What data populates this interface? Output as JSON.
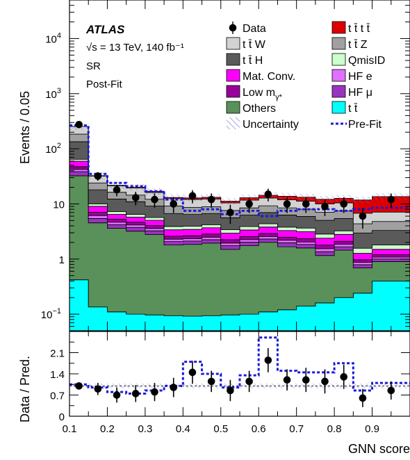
{
  "chart_data": [
    {
      "type": "stacked-histogram",
      "yscale": "log",
      "ylabel": "Events / 0.05",
      "xlabel": "GNN score",
      "xlim": [
        0.1,
        1.0
      ],
      "ylim": [
        0.05,
        50000
      ],
      "annotation": {
        "atlas": "ATLAS",
        "energy": "√s = 13 TeV, 140 fb⁻¹",
        "region": "SR",
        "fit": "Post-Fit"
      },
      "bins": [
        0.1,
        0.15,
        0.2,
        0.25,
        0.3,
        0.35,
        0.4,
        0.45,
        0.5,
        0.55,
        0.6,
        0.65,
        0.7,
        0.75,
        0.8,
        0.85,
        0.9,
        1.0
      ],
      "series": [
        {
          "name": "t t̄",
          "color": "#00ffff",
          "values": [
            0.42,
            0.135,
            0.11,
            0.1,
            0.097,
            0.094,
            0.092,
            0.094,
            0.097,
            0.1,
            0.11,
            0.12,
            0.14,
            0.16,
            0.2,
            0.24,
            0.4
          ]
        },
        {
          "name": "Others",
          "color": "#5a915a",
          "values": [
            32,
            4.4,
            3.5,
            3.1,
            2.7,
            1.7,
            1.75,
            1.85,
            1.4,
            1.65,
            1.9,
            1.55,
            1.45,
            1.0,
            1.25,
            0.45,
            0.5
          ]
        },
        {
          "name": "HF μ",
          "color": "#9a33c0",
          "values": [
            6,
            0.9,
            0.6,
            0.55,
            0.45,
            0.28,
            0.28,
            0.3,
            0.25,
            0.28,
            0.3,
            0.3,
            0.25,
            0.2,
            0.22,
            0.1,
            0.1
          ]
        },
        {
          "name": "HF e",
          "color": "#e070ff",
          "values": [
            4,
            0.7,
            0.45,
            0.4,
            0.35,
            0.22,
            0.22,
            0.25,
            0.2,
            0.22,
            0.25,
            0.22,
            0.2,
            0.18,
            0.18,
            0.08,
            0.08
          ]
        },
        {
          "name": "Low m_γ*",
          "color": "#990099",
          "values": [
            5,
            0.9,
            0.6,
            0.5,
            0.45,
            0.3,
            0.3,
            0.35,
            0.3,
            0.32,
            0.35,
            0.3,
            0.3,
            0.25,
            0.25,
            0.1,
            0.12
          ]
        },
        {
          "name": "Mat. Conv.",
          "color": "#ff00ff",
          "values": [
            12,
            2.0,
            1.2,
            1.1,
            1.0,
            0.8,
            0.8,
            0.85,
            0.7,
            0.8,
            0.9,
            0.8,
            0.8,
            0.6,
            0.7,
            0.3,
            0.3
          ]
        },
        {
          "name": "QmisID",
          "color": "#ccffcc",
          "values": [
            5,
            1.0,
            0.8,
            0.7,
            0.6,
            0.5,
            0.5,
            0.5,
            0.45,
            0.5,
            0.55,
            0.5,
            0.5,
            0.45,
            0.45,
            0.3,
            0.3
          ]
        },
        {
          "name": "t t̄ H",
          "color": "#5a5a5a",
          "values": [
            70,
            8,
            5,
            4.5,
            3.5,
            2.8,
            2.5,
            2.5,
            2.2,
            2.4,
            2.6,
            2.5,
            2.3,
            2.2,
            2.2,
            1.4,
            1.5
          ]
        },
        {
          "name": "t t̄ Z",
          "color": "#a0a0a0",
          "values": [
            50,
            6,
            4,
            3.5,
            3,
            2.5,
            2.2,
            2.2,
            2.0,
            2.2,
            2.3,
            2.2,
            2.1,
            2.0,
            2.0,
            1.4,
            1.5
          ]
        },
        {
          "name": "t t̄ W",
          "color": "#d2d2d2",
          "values": [
            70,
            8,
            5,
            5,
            4,
            3.3,
            3.4,
            3.4,
            2.8,
            3.2,
            3.5,
            3.4,
            3.2,
            3.0,
            3.0,
            2.4,
            2.3
          ]
        },
        {
          "name": "t t̄ t t̄",
          "color": "#dd0000",
          "values": [
            0.5,
            0.5,
            0.5,
            0.6,
            0.8,
            0.6,
            0.8,
            0.9,
            0.8,
            1.3,
            1.6,
            1.9,
            2.0,
            2.1,
            2.2,
            5.0,
            6.5
          ]
        }
      ],
      "data": {
        "name": "Data",
        "x": [
          0.125,
          0.175,
          0.225,
          0.275,
          0.325,
          0.375,
          0.425,
          0.475,
          0.525,
          0.575,
          0.625,
          0.675,
          0.725,
          0.775,
          0.825,
          0.875,
          0.95
        ],
        "y": [
          275,
          32,
          18,
          13,
          12,
          10,
          14,
          12,
          7,
          10,
          15,
          10,
          10,
          9,
          10,
          6,
          12
        ]
      },
      "prefit": {
        "name": "Pre-Fit",
        "values": [
          265,
          35,
          24,
          21,
          17,
          12,
          7.5,
          8,
          6.5,
          7.5,
          6,
          7.5,
          8,
          8,
          7.5,
          8,
          8.5
        ]
      },
      "uncertainty_label": "Uncertainty"
    },
    {
      "type": "ratio",
      "ylabel": "Data / Pred.",
      "ylim": [
        0,
        2.8
      ],
      "yticks": [
        "0",
        "0.7",
        "1.4",
        "2.1"
      ],
      "xticks": [
        "0.1",
        "0.2",
        "0.3",
        "0.4",
        "0.5",
        "0.6",
        "0.7",
        "0.8",
        "0.9"
      ],
      "points": {
        "x": [
          0.125,
          0.175,
          0.225,
          0.275,
          0.325,
          0.375,
          0.425,
          0.475,
          0.525,
          0.575,
          0.625,
          0.675,
          0.725,
          0.775,
          0.825,
          0.875,
          0.95
        ],
        "y": [
          1.0,
          0.9,
          0.7,
          0.75,
          0.8,
          0.95,
          1.45,
          1.15,
          0.85,
          1.15,
          1.85,
          1.2,
          1.2,
          1.15,
          1.3,
          0.6,
          0.85
        ],
        "err": [
          0.08,
          0.2,
          0.25,
          0.28,
          0.3,
          0.32,
          0.38,
          0.35,
          0.35,
          0.35,
          0.4,
          0.35,
          0.4,
          0.4,
          0.4,
          0.3,
          0.3
        ]
      },
      "prefit_ratio": [
        1.05,
        0.95,
        0.8,
        0.75,
        0.85,
        1.0,
        1.8,
        1.4,
        0.95,
        1.35,
        2.6,
        1.5,
        1.45,
        1.45,
        1.75,
        0.85,
        1.1
      ]
    }
  ]
}
